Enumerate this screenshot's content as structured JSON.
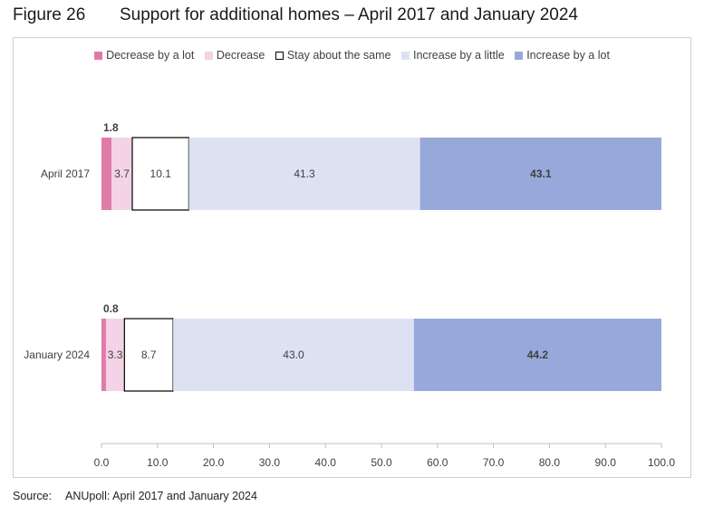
{
  "figure": {
    "number": "Figure 26",
    "title": "Support for additional homes – April 2017 and January 2024"
  },
  "source": {
    "label": "Source:",
    "text": "ANUpoll: April 2017 and January 2024"
  },
  "chart_data": {
    "type": "bar",
    "orientation": "horizontal",
    "stacked": true,
    "categories": [
      "April 2017",
      "January 2024"
    ],
    "series": [
      {
        "name": "Decrease by a lot",
        "color": "#e07aa8",
        "values": [
          1.8,
          0.8
        ],
        "labels": [
          "1.8",
          "0.8"
        ]
      },
      {
        "name": "Decrease",
        "color": "#f3d3e5",
        "values": [
          3.7,
          3.3
        ],
        "labels": [
          "3.7",
          "3.3"
        ]
      },
      {
        "name": "Stay about the same",
        "color": "#ffffff",
        "stroke": "#000000",
        "values": [
          10.1,
          8.7
        ],
        "labels": [
          "10.1",
          "8.7"
        ]
      },
      {
        "name": "Increase by a little",
        "color": "#dde2f3",
        "values": [
          41.3,
          43.0
        ],
        "labels": [
          "41.3",
          "43.0"
        ]
      },
      {
        "name": "Increase by a lot",
        "color": "#97a9db",
        "values": [
          43.1,
          44.2
        ],
        "labels": [
          "43.1",
          "44.2"
        ]
      }
    ],
    "xlim": [
      0,
      100
    ],
    "xticks": [
      "0.0",
      "10.0",
      "20.0",
      "30.0",
      "40.0",
      "50.0",
      "60.0",
      "70.0",
      "80.0",
      "90.0",
      "100.0"
    ],
    "legend_position": "top",
    "grid": false
  }
}
